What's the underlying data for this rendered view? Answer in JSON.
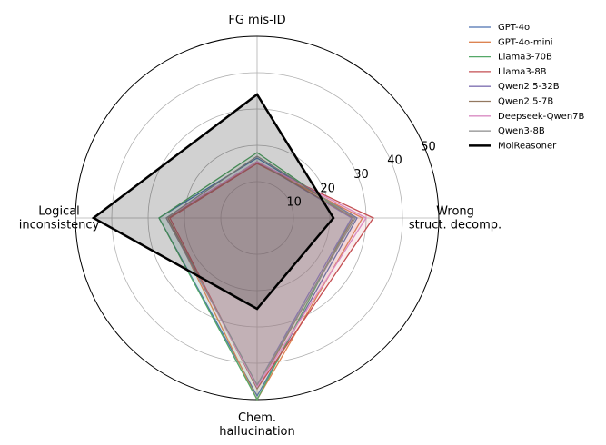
{
  "chart_data": {
    "type": "radar",
    "axes": [
      {
        "label": [
          "FG mis-ID"
        ]
      },
      {
        "label": [
          "Wrong",
          "struct. decomp."
        ]
      },
      {
        "label": [
          "Chem.",
          "hallucination"
        ]
      },
      {
        "label": [
          "Logical",
          "inconsistency"
        ]
      }
    ],
    "r_range": [
      0,
      50
    ],
    "r_ticks": [
      10,
      20,
      30,
      40,
      50
    ],
    "grid": true,
    "legend_position": "top-right",
    "series": [
      {
        "name": "GPT-4o",
        "color": "#4c72b0",
        "values": [
          16.5,
          27.5,
          49,
          27
        ]
      },
      {
        "name": "GPT-4o-mini",
        "color": "#dd8452",
        "values": [
          15,
          29,
          50,
          24.5
        ]
      },
      {
        "name": "Llama3-70B",
        "color": "#55a868",
        "values": [
          18,
          26,
          50,
          27
        ]
      },
      {
        "name": "Llama3-8B",
        "color": "#c44e52",
        "values": [
          15,
          32,
          47,
          24
        ]
      },
      {
        "name": "Qwen2.5-32B",
        "color": "#8172b3",
        "values": [
          15.5,
          26,
          46,
          25
        ]
      },
      {
        "name": "Qwen2.5-7B",
        "color": "#937860",
        "values": [
          15.5,
          26.5,
          47,
          24.5
        ]
      },
      {
        "name": "Deepseek-Qwen7B",
        "color": "#da8bc3",
        "values": [
          15.5,
          30,
          46.5,
          25
        ]
      },
      {
        "name": "Qwen3-8B",
        "color": "#8c8c8c",
        "values": [
          17,
          27,
          46,
          25
        ]
      },
      {
        "name": "MolReasoner",
        "color": "#000000",
        "values": [
          34,
          21,
          25,
          45
        ],
        "bold": true
      }
    ]
  }
}
